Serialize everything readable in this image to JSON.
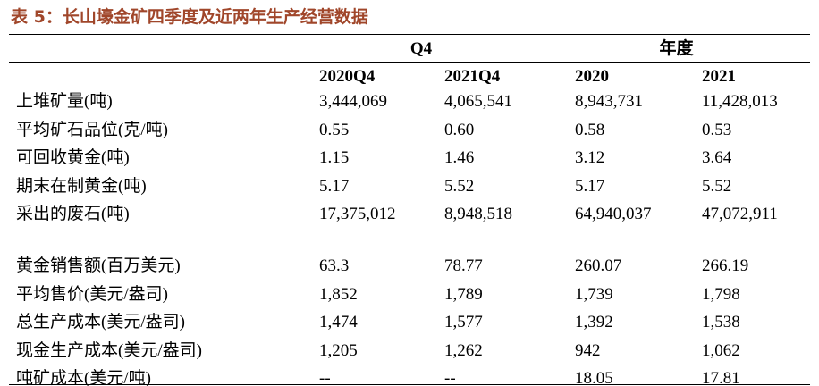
{
  "title": "表 5：长山壕金矿四季度及近两年生产经营数据",
  "groups": [
    "Q4",
    "年度"
  ],
  "columns": [
    "2020Q4",
    "2021Q4",
    "2020",
    "2021"
  ],
  "sections": [
    [
      {
        "label": "上堆矿量(吨)",
        "values": [
          "3,444,069",
          "4,065,541",
          "8,943,731",
          "11,428,013"
        ]
      },
      {
        "label": "平均矿石品位(克/吨)",
        "values": [
          "0.55",
          "0.60",
          "0.58",
          "0.53"
        ]
      },
      {
        "label": "可回收黄金(吨)",
        "values": [
          "1.15",
          "1.46",
          "3.12",
          "3.64"
        ]
      },
      {
        "label": "期末在制黄金(吨)",
        "values": [
          "5.17",
          "5.52",
          "5.17",
          "5.52"
        ]
      },
      {
        "label": "采出的废石(吨)",
        "values": [
          "17,375,012",
          "8,948,518",
          "64,940,037",
          "47,072,911"
        ]
      }
    ],
    [
      {
        "label": "黄金销售额(百万美元)",
        "values": [
          "63.3",
          "78.77",
          "260.07",
          "266.19"
        ]
      },
      {
        "label": "平均售价(美元/盎司)",
        "values": [
          "1,852",
          "1,789",
          "1,739",
          "1,798"
        ]
      },
      {
        "label": "总生产成本(美元/盎司)",
        "values": [
          "1,474",
          "1,577",
          "1,392",
          "1,538"
        ]
      },
      {
        "label": "现金生产成本(美元/盎司)",
        "values": [
          "1,205",
          "1,262",
          "942",
          "1,062"
        ]
      },
      {
        "label": "吨矿成本(美元/吨)",
        "values": [
          "--",
          "--",
          "18.05",
          "17.81"
        ]
      }
    ]
  ]
}
